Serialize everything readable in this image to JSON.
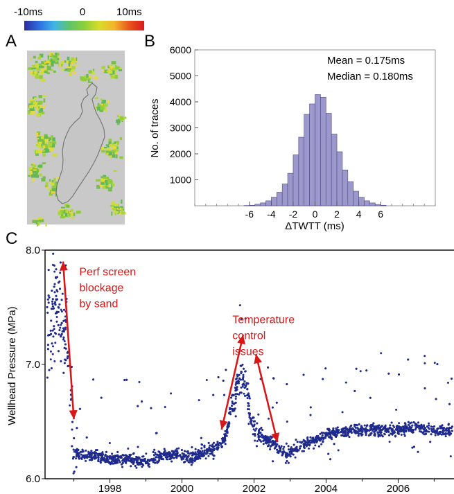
{
  "panel_labels": {
    "a": "A",
    "b": "B",
    "c": "C"
  },
  "colorbar": {
    "min_label": "-10ms",
    "mid_label": "0",
    "max_label": "10ms",
    "stops": [
      "#2c2c9c",
      "#2f6ee0",
      "#3fb5e8",
      "#5fc46a",
      "#8ccf3c",
      "#d8dc2c",
      "#f2b52c",
      "#e8541c",
      "#d81c1c"
    ]
  },
  "map": {
    "background": "#c9c9c9",
    "fill_colors": [
      "#74bf4a",
      "#8fcc3a",
      "#a9d43a",
      "#5fb85a",
      "#cfdc3c",
      "#e8d83a"
    ],
    "outline_color": "#777777"
  },
  "chart_data": [
    {
      "id": "histogram",
      "type": "bar",
      "title": "",
      "xlabel": "ΔTWTT (ms)",
      "ylabel": "No. of traces",
      "xlim": [
        -11,
        11
      ],
      "ylim": [
        0,
        6000
      ],
      "x_ticks": [
        -6,
        -4,
        -2,
        0,
        2,
        4,
        6
      ],
      "y_ticks": [
        1000,
        2000,
        3000,
        4000,
        5000,
        6000
      ],
      "bin_width": 0.5,
      "bin_starts": [
        -6.5,
        -6.0,
        -5.5,
        -5.0,
        -4.5,
        -4.0,
        -3.5,
        -3.0,
        -2.5,
        -2.0,
        -1.5,
        -1.0,
        -0.5,
        0.0,
        0.5,
        1.0,
        1.5,
        2.0,
        2.5,
        3.0,
        3.5,
        4.0,
        4.5,
        5.0,
        5.5,
        6.0
      ],
      "values": [
        10,
        20,
        60,
        110,
        190,
        330,
        520,
        840,
        1250,
        1960,
        2640,
        3520,
        3920,
        4280,
        4180,
        3560,
        2760,
        2080,
        1380,
        930,
        560,
        330,
        190,
        110,
        50,
        20
      ],
      "annotations": [
        "Mean = 0.175ms",
        "Median = 0.180ms"
      ],
      "bar_color": "#9c98cc",
      "bar_edge": "#4a4684"
    },
    {
      "id": "pressure",
      "type": "scatter",
      "title": "",
      "xlabel": "",
      "ylabel": "Wellhead Pressure (MPa)",
      "xlim": [
        1996.2,
        2007.55
      ],
      "ylim": [
        6.0,
        8.0
      ],
      "x_ticks": [
        1998,
        2000,
        2002,
        2004,
        2006
      ],
      "y_ticks": [
        6.0,
        7.0,
        8.0
      ],
      "grid": false,
      "point_color": "#1e2a8c",
      "baseline": [
        [
          1996.3,
          7.3
        ],
        [
          1996.5,
          7.55
        ],
        [
          1996.8,
          7.2
        ],
        [
          1997.05,
          6.22
        ],
        [
          1997.5,
          6.2
        ],
        [
          1998.0,
          6.18
        ],
        [
          1998.5,
          6.17
        ],
        [
          1999.0,
          6.15
        ],
        [
          1999.4,
          6.2
        ],
        [
          1999.8,
          6.22
        ],
        [
          2000.1,
          6.18
        ],
        [
          2000.5,
          6.22
        ],
        [
          2000.9,
          6.26
        ],
        [
          2001.2,
          6.35
        ],
        [
          2001.4,
          6.65
        ],
        [
          2001.6,
          6.9
        ],
        [
          2001.75,
          6.85
        ],
        [
          2001.9,
          6.55
        ],
        [
          2002.1,
          6.4
        ],
        [
          2002.4,
          6.33
        ],
        [
          2002.6,
          6.3
        ],
        [
          2002.9,
          6.2
        ],
        [
          2003.2,
          6.28
        ],
        [
          2003.6,
          6.33
        ],
        [
          2004.0,
          6.38
        ],
        [
          2004.5,
          6.42
        ],
        [
          2005.0,
          6.43
        ],
        [
          2005.5,
          6.42
        ],
        [
          2006.0,
          6.43
        ],
        [
          2006.5,
          6.45
        ],
        [
          2007.0,
          6.42
        ],
        [
          2007.5,
          6.42
        ]
      ],
      "annotations": [
        {
          "text": [
            "Perf screen",
            "blockage",
            "by sand"
          ],
          "x": 1997.15,
          "y": 7.78,
          "color": "#d81818"
        },
        {
          "text": [
            "Temperature",
            "control",
            "issues"
          ],
          "x": 2001.4,
          "y": 7.36,
          "color": "#d81818"
        }
      ],
      "arrows": [
        {
          "from": [
            1996.7,
            7.9
          ],
          "to": [
            1997.0,
            6.52
          ]
        },
        {
          "from": [
            2001.1,
            6.43
          ],
          "to": [
            2001.7,
            7.26
          ]
        },
        {
          "from": [
            2002.05,
            7.09
          ],
          "to": [
            2002.65,
            6.32
          ]
        }
      ],
      "arrow_color": "#d81818"
    }
  ]
}
